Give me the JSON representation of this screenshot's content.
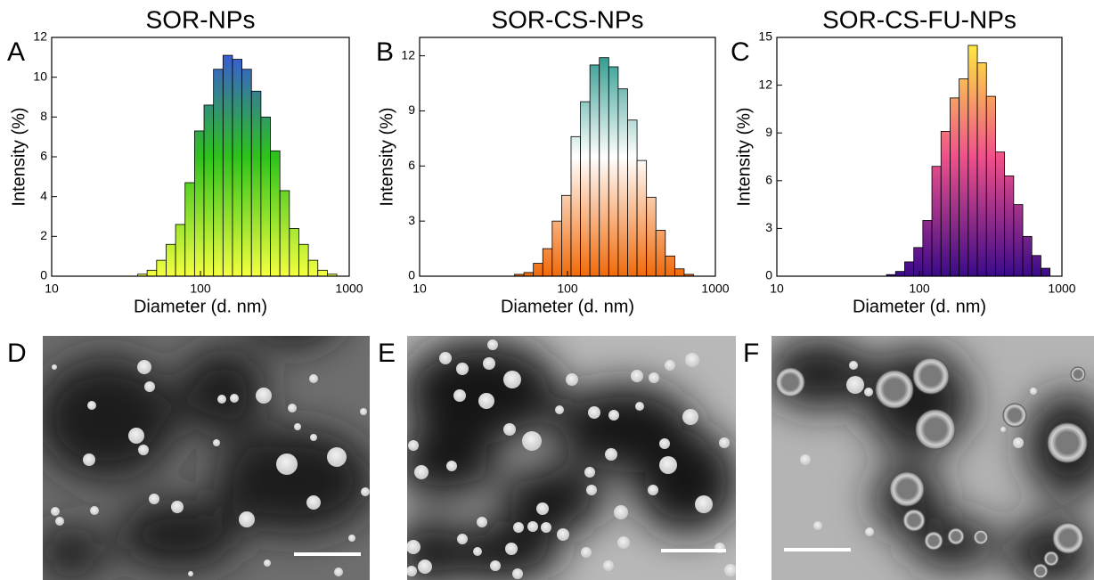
{
  "chart_data": [
    {
      "type": "histogram",
      "panel_label": "A",
      "title": "SOR-NPs",
      "xlabel": "Diameter (d. nm)",
      "ylabel": "Intensity (%)",
      "xscale": "log",
      "xlim": [
        10,
        1000
      ],
      "xticks": [
        10,
        100,
        1000
      ],
      "ylim": [
        0,
        12
      ],
      "yticks": [
        0,
        2,
        4,
        6,
        8,
        10,
        12
      ],
      "gradient": [
        "#3a4bf2",
        "#2ec21c",
        "#f4ff40"
      ],
      "bins": [
        37.84,
        43.82,
        50.75,
        58.77,
        68.06,
        78.82,
        91.28,
        105.7,
        122.4,
        141.8,
        164.2,
        190.1,
        220.2,
        255.0,
        295.3,
        342.0,
        396.1,
        458.7,
        531.2,
        615.1,
        712.4,
        825.0
      ],
      "values": [
        0.1,
        0.3,
        0.8,
        1.6,
        2.6,
        4.7,
        7.3,
        8.6,
        10.4,
        11.1,
        10.9,
        10.4,
        9.3,
        8.0,
        6.3,
        4.3,
        2.4,
        1.6,
        0.8,
        0.3,
        0.1
      ]
    },
    {
      "type": "histogram",
      "panel_label": "B",
      "title": "SOR-CS-NPs",
      "xlabel": "Diameter (d. nm)",
      "ylabel": "Intensity (%)",
      "xscale": "log",
      "xlim": [
        10,
        1000
      ],
      "xticks": [
        10,
        100,
        1000
      ],
      "ylim": [
        0,
        13
      ],
      "yticks": [
        0,
        3,
        6,
        9,
        12
      ],
      "gradient": [
        "#0d8a7c",
        "#ffffff",
        "#f06a0a"
      ],
      "bins": [
        43.82,
        50.75,
        58.77,
        68.06,
        78.82,
        91.28,
        105.7,
        122.4,
        141.8,
        164.2,
        190.1,
        220.2,
        255.0,
        295.3,
        342.0,
        396.1,
        458.7,
        531.2,
        615.1,
        712.4
      ],
      "values": [
        0.1,
        0.2,
        0.7,
        1.5,
        3.0,
        4.4,
        7.6,
        9.5,
        11.5,
        11.9,
        11.4,
        10.2,
        8.5,
        6.3,
        4.3,
        2.5,
        1.1,
        0.4,
        0.1
      ]
    },
    {
      "type": "histogram",
      "panel_label": "C",
      "title": "SOR-CS-FU-NPs",
      "xlabel": "Diameter (d. nm)",
      "ylabel": "Intensity (%)",
      "xscale": "log",
      "xlim": [
        10,
        1000
      ],
      "xticks": [
        10,
        100,
        1000
      ],
      "ylim": [
        0,
        15
      ],
      "yticks": [
        0,
        3,
        6,
        9,
        12,
        15
      ],
      "gradient": [
        "#fff23a",
        "#f0508a",
        "#3a0a8a"
      ],
      "bins": [
        58.77,
        68.06,
        78.82,
        91.28,
        105.7,
        122.4,
        141.8,
        164.2,
        190.1,
        220.2,
        255.0,
        295.3,
        342.0,
        396.1,
        458.7,
        531.2,
        615.1,
        712.4,
        825.0
      ],
      "values": [
        0.1,
        0.3,
        0.9,
        1.8,
        3.5,
        6.9,
        9.1,
        11.2,
        12.4,
        14.5,
        13.4,
        11.3,
        7.8,
        6.3,
        4.5,
        2.5,
        1.3,
        0.5
      ]
    }
  ],
  "micrographs": [
    {
      "panel_label": "D"
    },
    {
      "panel_label": "E"
    },
    {
      "panel_label": "F"
    }
  ]
}
